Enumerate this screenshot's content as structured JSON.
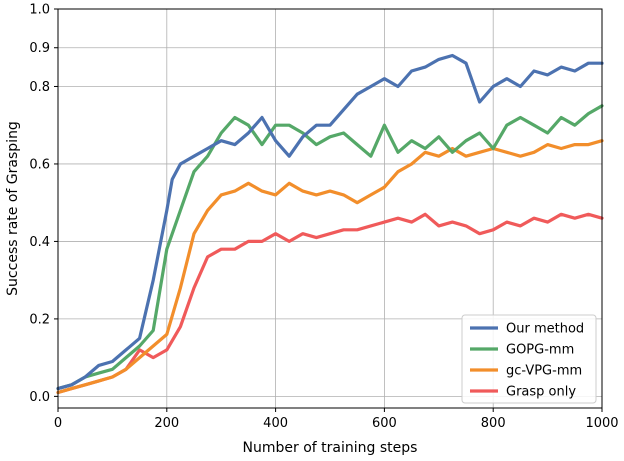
{
  "chart_data": {
    "type": "line",
    "title": "",
    "xlabel": "Number of training steps",
    "ylabel": "Success rate of Grasping",
    "xlim": [
      0,
      1000
    ],
    "ylim": [
      -0.03,
      1.0
    ],
    "xticks": [
      0,
      200,
      400,
      600,
      800,
      1000
    ],
    "yticks": [
      0.0,
      0.2,
      0.4,
      0.6,
      0.8,
      0.9,
      1.0
    ],
    "grid": true,
    "legend_position": "bottom-right",
    "series": [
      {
        "name": "Our method",
        "color": "#4c72b0",
        "x": [
          0,
          25,
          50,
          75,
          100,
          125,
          150,
          175,
          200,
          210,
          225,
          250,
          275,
          300,
          325,
          350,
          375,
          400,
          425,
          450,
          475,
          500,
          525,
          550,
          575,
          600,
          625,
          650,
          675,
          700,
          725,
          750,
          775,
          800,
          825,
          850,
          875,
          900,
          925,
          950,
          975,
          1000
        ],
        "values": [
          0.02,
          0.03,
          0.05,
          0.08,
          0.09,
          0.12,
          0.15,
          0.3,
          0.48,
          0.56,
          0.6,
          0.62,
          0.64,
          0.66,
          0.65,
          0.68,
          0.72,
          0.66,
          0.62,
          0.67,
          0.7,
          0.7,
          0.74,
          0.78,
          0.8,
          0.82,
          0.8,
          0.84,
          0.85,
          0.87,
          0.88,
          0.86,
          0.76,
          0.8,
          0.82,
          0.8,
          0.84,
          0.83,
          0.85,
          0.84,
          0.86,
          0.86
        ]
      },
      {
        "name": "GOPG-mm",
        "color": "#55a868",
        "x": [
          0,
          25,
          50,
          75,
          100,
          125,
          150,
          175,
          200,
          225,
          250,
          275,
          300,
          325,
          350,
          375,
          400,
          425,
          450,
          475,
          500,
          525,
          550,
          575,
          600,
          625,
          650,
          675,
          700,
          725,
          750,
          775,
          800,
          825,
          850,
          875,
          900,
          925,
          950,
          975,
          1000
        ],
        "values": [
          0.02,
          0.03,
          0.05,
          0.06,
          0.07,
          0.1,
          0.13,
          0.17,
          0.38,
          0.48,
          0.58,
          0.62,
          0.68,
          0.72,
          0.7,
          0.65,
          0.7,
          0.7,
          0.68,
          0.65,
          0.67,
          0.68,
          0.65,
          0.62,
          0.7,
          0.63,
          0.66,
          0.64,
          0.67,
          0.63,
          0.66,
          0.68,
          0.64,
          0.7,
          0.72,
          0.7,
          0.68,
          0.72,
          0.7,
          0.73,
          0.75
        ]
      },
      {
        "name": "gc-VPG-mm",
        "color": "#f28e2b",
        "x": [
          0,
          25,
          50,
          75,
          100,
          125,
          150,
          175,
          200,
          225,
          250,
          275,
          300,
          325,
          350,
          375,
          400,
          425,
          450,
          475,
          500,
          525,
          550,
          575,
          600,
          625,
          650,
          675,
          700,
          725,
          750,
          775,
          800,
          825,
          850,
          875,
          900,
          925,
          950,
          975,
          1000
        ],
        "values": [
          0.01,
          0.02,
          0.03,
          0.04,
          0.05,
          0.07,
          0.1,
          0.13,
          0.16,
          0.28,
          0.42,
          0.48,
          0.52,
          0.53,
          0.55,
          0.53,
          0.52,
          0.55,
          0.53,
          0.52,
          0.53,
          0.52,
          0.5,
          0.52,
          0.54,
          0.58,
          0.6,
          0.63,
          0.62,
          0.64,
          0.62,
          0.63,
          0.64,
          0.63,
          0.62,
          0.63,
          0.65,
          0.64,
          0.65,
          0.65,
          0.66
        ]
      },
      {
        "name": "Grasp only",
        "color": "#f05a5a",
        "x": [
          0,
          25,
          50,
          75,
          100,
          125,
          150,
          175,
          200,
          225,
          250,
          275,
          300,
          325,
          350,
          375,
          400,
          425,
          450,
          475,
          500,
          525,
          550,
          575,
          600,
          625,
          650,
          675,
          700,
          725,
          750,
          775,
          800,
          825,
          850,
          875,
          900,
          925,
          950,
          975,
          1000
        ],
        "values": [
          0.01,
          0.02,
          0.03,
          0.04,
          0.05,
          0.07,
          0.12,
          0.1,
          0.12,
          0.18,
          0.28,
          0.36,
          0.38,
          0.38,
          0.4,
          0.4,
          0.42,
          0.4,
          0.42,
          0.41,
          0.42,
          0.43,
          0.43,
          0.44,
          0.45,
          0.46,
          0.45,
          0.47,
          0.44,
          0.45,
          0.44,
          0.42,
          0.43,
          0.45,
          0.44,
          0.46,
          0.45,
          0.47,
          0.46,
          0.47,
          0.46
        ]
      }
    ]
  }
}
